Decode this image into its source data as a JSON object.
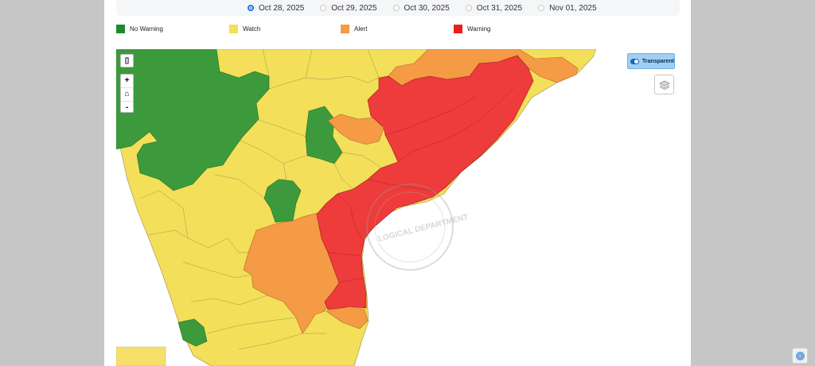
{
  "dates": [
    {
      "label": "Oct 28, 2025",
      "selected": true
    },
    {
      "label": "Oct 29, 2025",
      "selected": false
    },
    {
      "label": "Oct 30, 2025",
      "selected": false
    },
    {
      "label": "Oct 31, 2025",
      "selected": false
    },
    {
      "label": "Nov 01, 2025",
      "selected": false
    }
  ],
  "legend": [
    {
      "label": "No Warning",
      "color": "#1e8a2a"
    },
    {
      "label": "Watch",
      "color": "#f3df59"
    },
    {
      "label": "Alert",
      "color": "#f59a45"
    },
    {
      "label": "Warning",
      "color": "#ef1c1c"
    }
  ],
  "map_controls": {
    "zoom_in": "+",
    "home_icon": "home-icon",
    "zoom_out": "-",
    "fullscreen_icon": "mobile-icon",
    "transparent_label": "Transparent",
    "transparent_on": true,
    "layers_icon": "layers-icon"
  },
  "watermark_text": "LOGICAL DEPARTMENT",
  "scroll_top_icon": "arrow-up-icon"
}
